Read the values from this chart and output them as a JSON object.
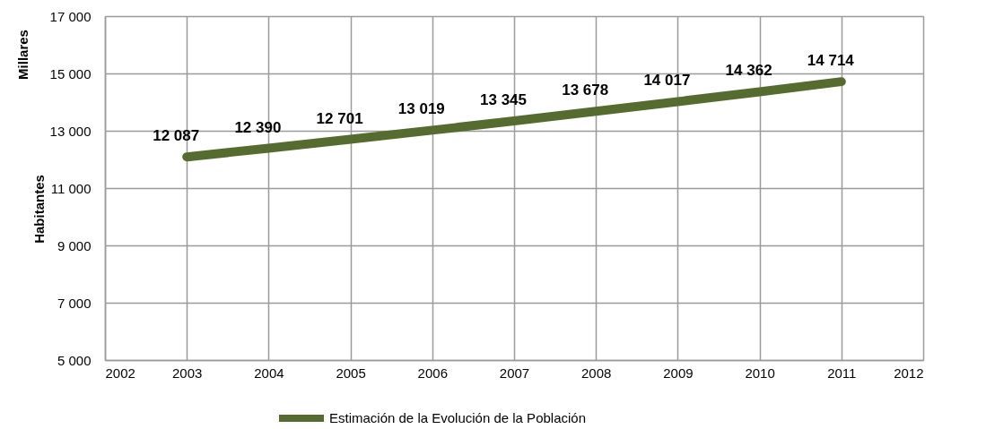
{
  "chart_data": {
    "type": "line",
    "ylabel": "Habitantes",
    "annotations": [
      "Millares"
    ],
    "x": [
      2003,
      2004,
      2005,
      2006,
      2007,
      2008,
      2009,
      2010,
      2011
    ],
    "series": [
      {
        "name": "Estimación de la Evolución de la Población",
        "color": "#566b2f",
        "values": [
          12087,
          12390,
          12701,
          13019,
          13345,
          13678,
          14017,
          14362,
          14714
        ],
        "value_labels": [
          "12 087",
          "12 390",
          "12 701",
          "13 019",
          "13 345",
          "13 678",
          "14 017",
          "14 362",
          "14 714"
        ]
      }
    ],
    "xlim": [
      2002,
      2012
    ],
    "xticks": [
      2002,
      2003,
      2004,
      2005,
      2006,
      2007,
      2008,
      2009,
      2010,
      2011,
      2012
    ],
    "ylim": [
      5000,
      17000
    ],
    "yticks": [
      {
        "value": 5000,
        "label": "5 000"
      },
      {
        "value": 7000,
        "label": "7 000"
      },
      {
        "value": 9000,
        "label": "9 000"
      },
      {
        "value": 11000,
        "label": "11 000"
      },
      {
        "value": 13000,
        "label": "13 000"
      },
      {
        "value": 15000,
        "label": "15 000"
      },
      {
        "value": 17000,
        "label": "17 000"
      }
    ],
    "grid": true,
    "legend": "bottom",
    "marker": "none",
    "line_style": "solid"
  }
}
